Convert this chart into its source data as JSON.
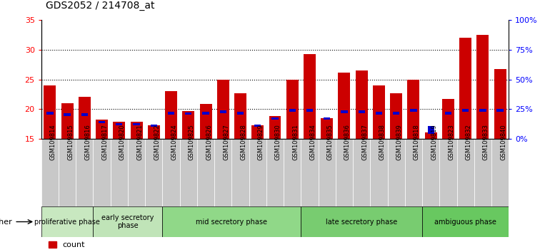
{
  "title": "GDS2052 / 214708_at",
  "samples": [
    "GSM109814",
    "GSM109815",
    "GSM109816",
    "GSM109817",
    "GSM109820",
    "GSM109821",
    "GSM109822",
    "GSM109824",
    "GSM109825",
    "GSM109826",
    "GSM109827",
    "GSM109828",
    "GSM109829",
    "GSM109830",
    "GSM109831",
    "GSM109834",
    "GSM109835",
    "GSM109836",
    "GSM109837",
    "GSM109838",
    "GSM109839",
    "GSM109818",
    "GSM109819",
    "GSM109823",
    "GSM109832",
    "GSM109833",
    "GSM109840"
  ],
  "count_values": [
    24.0,
    21.0,
    22.0,
    18.2,
    17.8,
    17.8,
    17.3,
    23.0,
    19.7,
    20.8,
    25.0,
    22.7,
    17.3,
    18.8,
    25.0,
    29.3,
    18.5,
    26.2,
    26.5,
    24.0,
    22.7,
    25.0,
    16.1,
    21.7,
    32.0,
    32.5,
    26.7
  ],
  "pct_heights": [
    0.5,
    0.5,
    0.5,
    0.35,
    0.35,
    0.35,
    0.35,
    0.5,
    0.45,
    0.5,
    0.5,
    0.5,
    0.4,
    0.42,
    0.5,
    0.5,
    0.42,
    0.5,
    0.5,
    0.5,
    0.5,
    0.5,
    1.3,
    0.5,
    0.5,
    0.5,
    0.5
  ],
  "pct_bottoms": [
    19.0,
    18.8,
    18.8,
    17.6,
    17.3,
    17.3,
    17.0,
    19.0,
    19.0,
    19.0,
    19.3,
    19.0,
    17.0,
    18.2,
    19.5,
    19.5,
    18.2,
    19.3,
    19.3,
    19.0,
    19.0,
    19.5,
    15.8,
    19.0,
    19.5,
    19.5,
    19.5
  ],
  "phases": [
    {
      "name": "proliferative phase",
      "start": 0,
      "end": 3,
      "color": "#c8e8c0"
    },
    {
      "name": "early secretory\nphase",
      "start": 3,
      "end": 7,
      "color": "#c0e4b8"
    },
    {
      "name": "mid secretory phase",
      "start": 7,
      "end": 15,
      "color": "#90d888"
    },
    {
      "name": "late secretory phase",
      "start": 15,
      "end": 22,
      "color": "#78cc70"
    },
    {
      "name": "ambiguous phase",
      "start": 22,
      "end": 27,
      "color": "#68c860"
    }
  ],
  "ylim": [
    15,
    35
  ],
  "yticks_left": [
    15,
    20,
    25,
    30,
    35
  ],
  "yticks_right": [
    0,
    25,
    50,
    75,
    100
  ],
  "bar_color": "#cc0000",
  "pct_color": "#0000cc",
  "xlabel_bg": "#c8c8c8",
  "title_fontsize": 10,
  "grid_color": "#000000"
}
